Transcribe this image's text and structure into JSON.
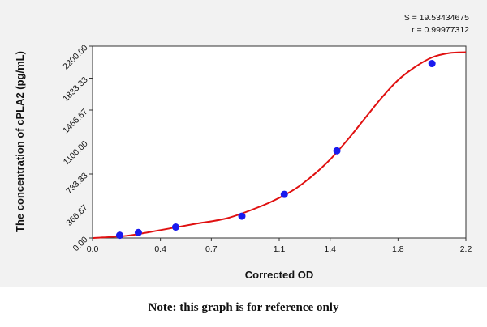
{
  "stats": {
    "s_text": "S = 19.53434675",
    "r_text": "r = 0.99977312"
  },
  "note": "Note: this graph is for reference only",
  "colors": {
    "curve": "#e01010",
    "points": "#1a1aee",
    "panel": "#f2f2f2",
    "plot_bg": "#ffffff"
  },
  "chart_data": {
    "type": "scatter",
    "xlabel": "Corrected OD",
    "ylabel": "The concentration of cPLA2 (pg/mL)",
    "xlim": [
      0.0,
      2.2
    ],
    "ylim": [
      0.0,
      2200.0
    ],
    "x_ticks": [
      0.0,
      0.4,
      0.7,
      1.1,
      1.4,
      1.8,
      2.2
    ],
    "x_tick_labels": [
      "0.0",
      "0.4",
      "0.7",
      "1.1",
      "1.4",
      "1.8",
      "2.2"
    ],
    "y_ticks": [
      0.0,
      366.67,
      733.33,
      1100.0,
      1466.67,
      1833.33,
      2200.0
    ],
    "y_tick_labels": [
      "0.00",
      "366.67",
      "733.33",
      "1100.00",
      "1466.67",
      "1833.33",
      "2200.00"
    ],
    "grid": false,
    "series": [
      {
        "type": "scatter",
        "x": [
          0.16,
          0.27,
          0.49,
          0.88,
          1.13,
          1.44,
          2.0
        ],
        "y": [
          31.25,
          62.5,
          125,
          250,
          500,
          1000,
          2000
        ]
      },
      {
        "type": "line",
        "x": [
          0.0,
          0.2,
          0.4,
          0.6,
          0.8,
          1.0,
          1.1,
          1.2,
          1.3,
          1.4,
          1.5,
          1.6,
          1.7,
          1.8,
          1.9,
          2.0,
          2.1,
          2.2
        ],
        "y": [
          0,
          25,
          90,
          160,
          230,
          370,
          460,
          570,
          720,
          900,
          1120,
          1360,
          1600,
          1810,
          1960,
          2070,
          2120,
          2130
        ]
      }
    ]
  }
}
